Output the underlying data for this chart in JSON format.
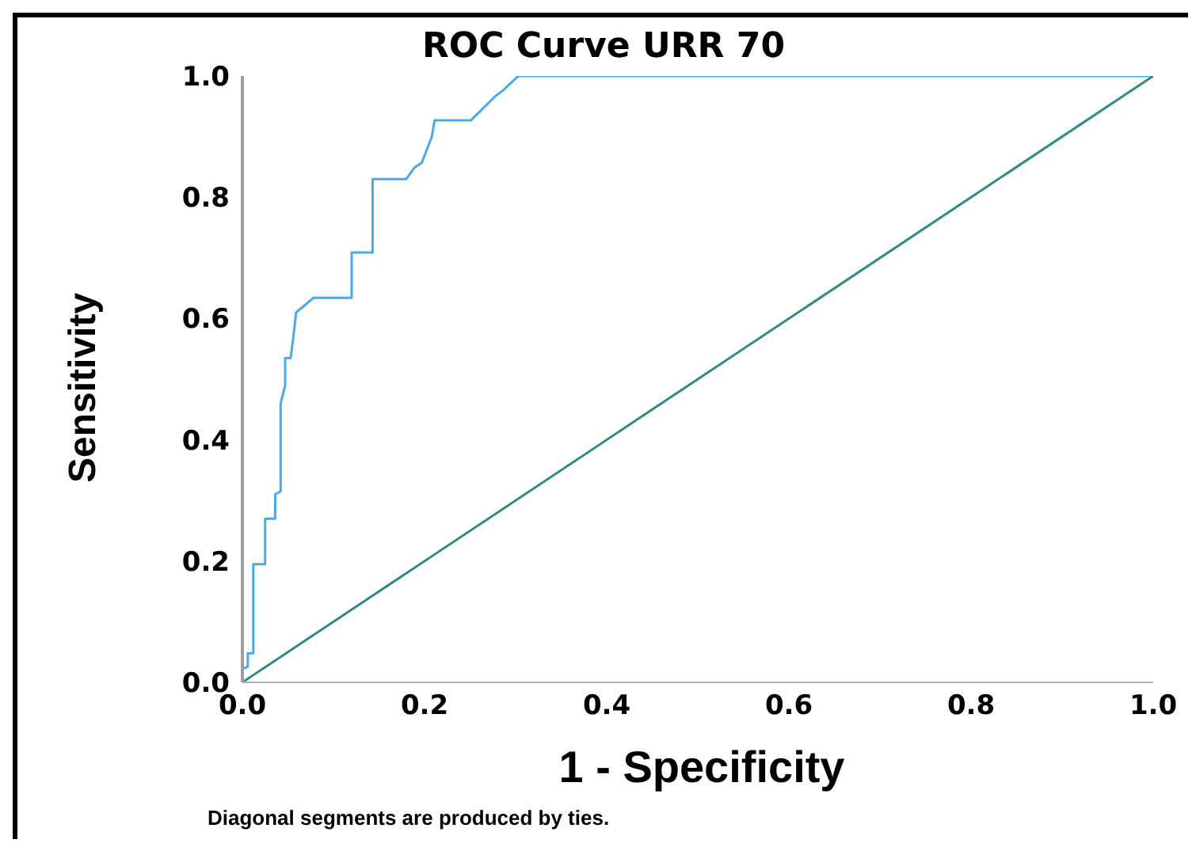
{
  "chart_data": {
    "type": "line",
    "title": "ROC Curve URR 70",
    "xlabel": "1 - Specificity",
    "ylabel": "Sensitivity",
    "annotations": [
      "Diagonal segments are produced by ties."
    ],
    "series": [
      {
        "color": "#4aa8e8",
        "x": [
          0,
          0,
          0.006,
          0.006,
          0.012,
          0.012,
          0.025,
          0.025,
          0.036,
          0.036,
          0.042,
          0.042,
          0.047,
          0.047,
          0.053,
          0.056,
          0.059,
          0.078,
          0.12,
          0.12,
          0.143,
          0.143,
          0.18,
          0.189,
          0.197,
          0.208,
          0.211,
          0.251,
          0.278,
          0.286,
          0.303,
          1
        ],
        "values": [
          0,
          0.022,
          0.026,
          0.048,
          0.048,
          0.195,
          0.195,
          0.27,
          0.27,
          0.31,
          0.315,
          0.46,
          0.49,
          0.535,
          0.535,
          0.57,
          0.61,
          0.634,
          0.634,
          0.709,
          0.709,
          0.83,
          0.83,
          0.849,
          0.857,
          0.9,
          0.927,
          0.927,
          0.967,
          0.976,
          1,
          1
        ]
      },
      {
        "color": "#2e8b82",
        "x": [
          0,
          1
        ],
        "values": [
          0,
          1
        ]
      }
    ],
    "xlim": [
      0,
      1
    ],
    "ylim": [
      0,
      1
    ],
    "xticks": [
      {
        "value": 0,
        "label": "0.0"
      },
      0.2,
      0.4,
      0.6,
      0.8,
      {
        "value": 1,
        "label": "1.0"
      }
    ],
    "yticks": [
      {
        "value": 0,
        "label": "0.0"
      },
      0.2,
      0.4,
      0.6,
      0.8,
      {
        "value": 1,
        "label": "1.0"
      }
    ],
    "grid": false,
    "marker": "none",
    "line_style": "solid"
  }
}
